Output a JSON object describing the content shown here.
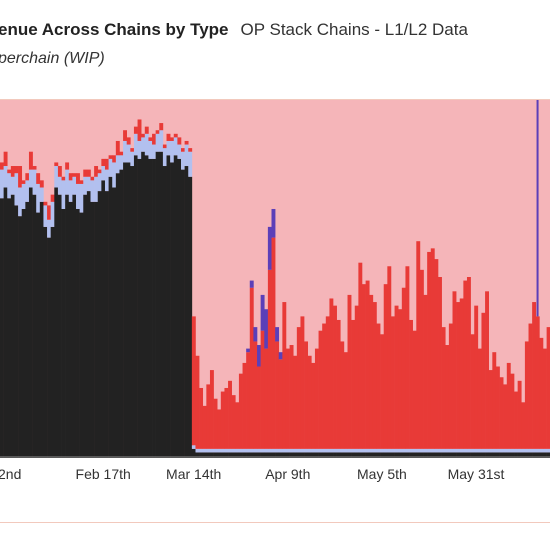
{
  "header": {
    "title": "enue Across Chains by Type",
    "source": "OP Stack Chains - L1/L2 Data",
    "subtitle": "perchain (WIP)"
  },
  "colors": {
    "background_band": "#f5b5b9",
    "l2_chain": "#e83a37",
    "op_mainnet": "#222222",
    "op_mainnet_top": "#b2c0ef",
    "purple_chain": "#5b3fb8",
    "thin_base": "#5a5a5a"
  },
  "chart_data": {
    "type": "bar",
    "title": "",
    "xlabel": "",
    "ylabel": "",
    "stacked": true,
    "grid": false,
    "x_tick_labels": [
      "2nd",
      "Feb 17th",
      "Mar 14th",
      "Apr 9th",
      "May 5th",
      "May 31st"
    ],
    "bar_index_per_day": 1,
    "x_tick_bar_index": [
      2,
      28,
      53,
      79,
      105,
      131
    ],
    "y_scale_max": 100,
    "series": [
      {
        "values": [
          72,
          75,
          72,
          73,
          70,
          67,
          69,
          71,
          75,
          73,
          68,
          71,
          64,
          61,
          64,
          75,
          73,
          69,
          73,
          71,
          73,
          69,
          68,
          73,
          74,
          71,
          71,
          74,
          77,
          74,
          78,
          75,
          79,
          80,
          82,
          82,
          81,
          84,
          83,
          85,
          84,
          83,
          83,
          85,
          85,
          81,
          84,
          82,
          84,
          83,
          80,
          81,
          78,
          2,
          1,
          1,
          1,
          1,
          1,
          1,
          1,
          1,
          1,
          1,
          1,
          1,
          1,
          1,
          1,
          1,
          1,
          1,
          1,
          1,
          1,
          1,
          1,
          1,
          1,
          1,
          1,
          1,
          1,
          1,
          1,
          1,
          1,
          1,
          1,
          1,
          1,
          1,
          1,
          1,
          1,
          1,
          1,
          1,
          1,
          1,
          1,
          1,
          1,
          1,
          1,
          1,
          1,
          1,
          1,
          1,
          1,
          1,
          1,
          1,
          1,
          1,
          1,
          1,
          1,
          1,
          1,
          1,
          1,
          1,
          1,
          1,
          1,
          1,
          1,
          1,
          1,
          1,
          1,
          1,
          1,
          1,
          1,
          1,
          1,
          1,
          1,
          1,
          1,
          1,
          1,
          1,
          1,
          1,
          1,
          1,
          1,
          1,
          1
        ]
      },
      {
        "values": [
          8,
          6,
          7,
          5,
          9,
          8,
          7,
          6,
          5,
          7,
          8,
          4,
          6,
          5,
          7,
          6,
          5,
          8,
          7,
          6,
          5,
          7,
          8,
          5,
          4,
          6,
          7,
          5,
          4,
          6,
          5,
          7,
          5,
          4,
          6,
          5,
          4,
          6,
          5,
          4,
          6,
          5,
          4,
          5,
          6,
          5,
          4,
          6,
          5,
          4,
          5,
          6,
          7,
          1,
          1,
          1,
          1,
          1,
          1,
          1,
          1,
          1,
          1,
          1,
          1,
          1,
          1,
          1,
          1,
          1,
          1,
          1,
          1,
          1,
          1,
          1,
          1,
          1,
          1,
          1,
          1,
          1,
          1,
          1,
          1,
          1,
          1,
          1,
          1,
          1,
          1,
          1,
          1,
          1,
          1,
          1,
          1,
          1,
          1,
          1,
          1,
          1,
          1,
          1,
          1,
          1,
          1,
          1,
          1,
          1,
          1,
          1,
          1,
          1,
          1,
          1,
          1,
          1,
          1,
          1,
          1,
          1,
          1,
          1,
          1,
          1,
          1,
          1,
          1,
          1,
          1,
          1,
          1,
          1,
          1,
          1,
          1,
          1,
          1,
          1,
          1,
          1,
          1,
          1,
          1,
          1,
          1,
          1,
          1,
          1,
          1,
          1,
          1
        ]
      },
      {
        "values": [
          2,
          4,
          1,
          3,
          2,
          6,
          1,
          2,
          5,
          1,
          3,
          2,
          1,
          4,
          2,
          1,
          3,
          1,
          2,
          2,
          1,
          3,
          1,
          2,
          2,
          1,
          3,
          1,
          2,
          3,
          1,
          2,
          4,
          1,
          3,
          2,
          1,
          2,
          6,
          1,
          2,
          1,
          3,
          1,
          2,
          1,
          2,
          1,
          1,
          2,
          1,
          1,
          1,
          36,
          26,
          17,
          12,
          18,
          22,
          14,
          11,
          16,
          17,
          19,
          15,
          13,
          21,
          24,
          27,
          45,
          30,
          23,
          33,
          28,
          50,
          59,
          30,
          25,
          41,
          28,
          29,
          26,
          34,
          37,
          30,
          26,
          24,
          28,
          33,
          35,
          37,
          42,
          40,
          36,
          30,
          27,
          43,
          36,
          40,
          52,
          46,
          47,
          43,
          41,
          35,
          32,
          46,
          51,
          37,
          40,
          39,
          45,
          51,
          36,
          33,
          58,
          50,
          43,
          55,
          56,
          53,
          48,
          34,
          29,
          35,
          44,
          41,
          42,
          47,
          48,
          32,
          40,
          28,
          38,
          44,
          22,
          27,
          23,
          20,
          18,
          24,
          21,
          16,
          19,
          13,
          30,
          35,
          41,
          37,
          31,
          28,
          34,
          44
        ]
      },
      {
        "values": [
          0,
          0,
          0,
          0,
          0,
          0,
          0,
          0,
          0,
          0,
          0,
          0,
          0,
          0,
          0,
          0,
          0,
          0,
          0,
          0,
          0,
          0,
          0,
          0,
          0,
          0,
          0,
          0,
          0,
          0,
          0,
          0,
          0,
          0,
          0,
          0,
          0,
          0,
          0,
          0,
          0,
          0,
          0,
          0,
          0,
          0,
          0,
          0,
          0,
          0,
          0,
          0,
          0,
          0,
          0,
          0,
          0,
          0,
          0,
          0,
          0,
          0,
          0,
          0,
          0,
          0,
          0,
          0,
          1,
          2,
          4,
          6,
          10,
          11,
          12,
          8,
          4,
          2,
          0,
          0,
          0,
          0,
          0,
          0,
          0,
          0,
          0,
          0,
          0,
          0,
          0,
          0,
          0,
          0,
          0,
          0,
          0,
          0,
          0,
          0,
          0,
          0,
          0,
          0,
          0,
          0,
          0,
          0,
          0,
          0,
          0,
          0,
          0,
          0,
          0,
          0,
          0,
          0,
          0,
          0,
          0,
          0,
          0,
          0,
          0,
          0,
          0,
          0,
          0,
          0,
          0,
          0,
          0,
          0,
          0,
          0,
          0,
          0,
          0,
          0,
          0,
          0,
          0,
          0,
          0,
          0,
          0,
          0,
          88,
          0,
          0,
          0,
          0
        ]
      }
    ]
  }
}
